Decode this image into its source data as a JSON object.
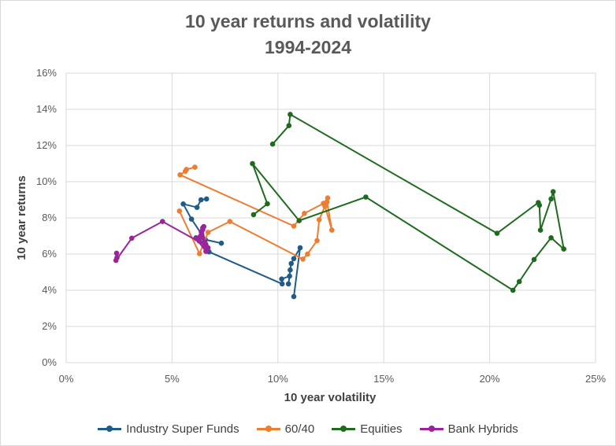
{
  "title_line1": "10 year returns and volatility",
  "title_line2": "1994-2024",
  "chart_data": {
    "type": "line",
    "subtype": "scatter-with-lines",
    "title": "10 year returns and volatility 1994-2024",
    "xlabel": "10 year volatility",
    "ylabel": "10 year returns",
    "xlim": [
      0,
      0.25
    ],
    "ylim": [
      0,
      0.16
    ],
    "x_ticks": [
      0,
      0.05,
      0.1,
      0.15,
      0.2,
      0.25
    ],
    "x_tick_labels": [
      "0%",
      "5%",
      "10%",
      "15%",
      "20%",
      "25%"
    ],
    "y_ticks": [
      0,
      0.02,
      0.04,
      0.06,
      0.08,
      0.1,
      0.12,
      0.14,
      0.16
    ],
    "y_tick_labels": [
      "0%",
      "2%",
      "4%",
      "6%",
      "8%",
      "10%",
      "12%",
      "14%",
      "16%"
    ],
    "grid": true,
    "legend_position": "bottom",
    "series": [
      {
        "name": "Industry Super Funds",
        "color": "#1f5c87",
        "points": [
          [
            0.0663,
            0.0905
          ],
          [
            0.0637,
            0.09
          ],
          [
            0.0618,
            0.0858
          ],
          [
            0.0553,
            0.0877
          ],
          [
            0.0592,
            0.0793
          ],
          [
            0.0657,
            0.068
          ],
          [
            0.0733,
            0.066
          ],
          [
            0.0613,
            0.069
          ],
          [
            0.066,
            0.0652
          ],
          [
            0.0675,
            0.0612
          ],
          [
            0.102,
            0.0435
          ],
          [
            0.1018,
            0.0462
          ],
          [
            0.1055,
            0.0478
          ],
          [
            0.105,
            0.0435
          ],
          [
            0.1058,
            0.0512
          ],
          [
            0.1063,
            0.0548
          ],
          [
            0.1075,
            0.0575
          ],
          [
            0.1105,
            0.0635
          ],
          [
            0.1075,
            0.0365
          ]
        ]
      },
      {
        "name": "60/40",
        "color": "#ed7d31",
        "points": [
          [
            0.0608,
            0.108
          ],
          [
            0.0568,
            0.1068
          ],
          [
            0.0563,
            0.1058
          ],
          [
            0.0538,
            0.1038
          ],
          [
            0.1075,
            0.0755
          ],
          [
            0.1125,
            0.0825
          ],
          [
            0.1215,
            0.088
          ],
          [
            0.1235,
            0.091
          ],
          [
            0.1232,
            0.0888
          ],
          [
            0.1255,
            0.0732
          ],
          [
            0.1222,
            0.0865
          ],
          [
            0.1195,
            0.079
          ],
          [
            0.1185,
            0.0675
          ],
          [
            0.114,
            0.06
          ],
          [
            0.1118,
            0.0572
          ],
          [
            0.0773,
            0.078
          ],
          [
            0.067,
            0.072
          ],
          [
            0.063,
            0.0602
          ],
          [
            0.0535,
            0.0838
          ]
        ]
      },
      {
        "name": "Equities",
        "color": "#1e6b1e",
        "points": [
          [
            0.0975,
            0.1208
          ],
          [
            0.1052,
            0.131
          ],
          [
            0.1058,
            0.1372
          ],
          [
            0.2035,
            0.0715
          ],
          [
            0.223,
            0.0885
          ],
          [
            0.2235,
            0.087
          ],
          [
            0.224,
            0.0732
          ],
          [
            0.229,
            0.0905
          ],
          [
            0.23,
            0.0945
          ],
          [
            0.235,
            0.0628
          ],
          [
            0.229,
            0.069
          ],
          [
            0.221,
            0.057
          ],
          [
            0.214,
            0.0448
          ],
          [
            0.211,
            0.04
          ],
          [
            0.1415,
            0.0915
          ],
          [
            0.11,
            0.0785
          ],
          [
            0.088,
            0.11
          ],
          [
            0.095,
            0.0878
          ],
          [
            0.0885,
            0.0818
          ]
        ]
      },
      {
        "name": "Bank Hybrids",
        "color": "#9b239b",
        "points": [
          [
            0.0238,
            0.0605
          ],
          [
            0.024,
            0.058
          ],
          [
            0.0235,
            0.0565
          ],
          [
            0.031,
            0.0688
          ],
          [
            0.0455,
            0.078
          ],
          [
            0.0655,
            0.065
          ],
          [
            0.066,
            0.0615
          ],
          [
            0.0615,
            0.0685
          ],
          [
            0.067,
            0.0635
          ],
          [
            0.064,
            0.071
          ],
          [
            0.0645,
            0.0745
          ],
          [
            0.065,
            0.0752
          ],
          [
            0.0638,
            0.0722
          ],
          [
            0.0632,
            0.0695
          ],
          [
            0.0628,
            0.0672
          ],
          [
            0.066,
            0.064
          ],
          [
            0.0635,
            0.07
          ],
          [
            0.0645,
            0.0735
          ],
          [
            0.0655,
            0.0665
          ]
        ]
      }
    ]
  }
}
